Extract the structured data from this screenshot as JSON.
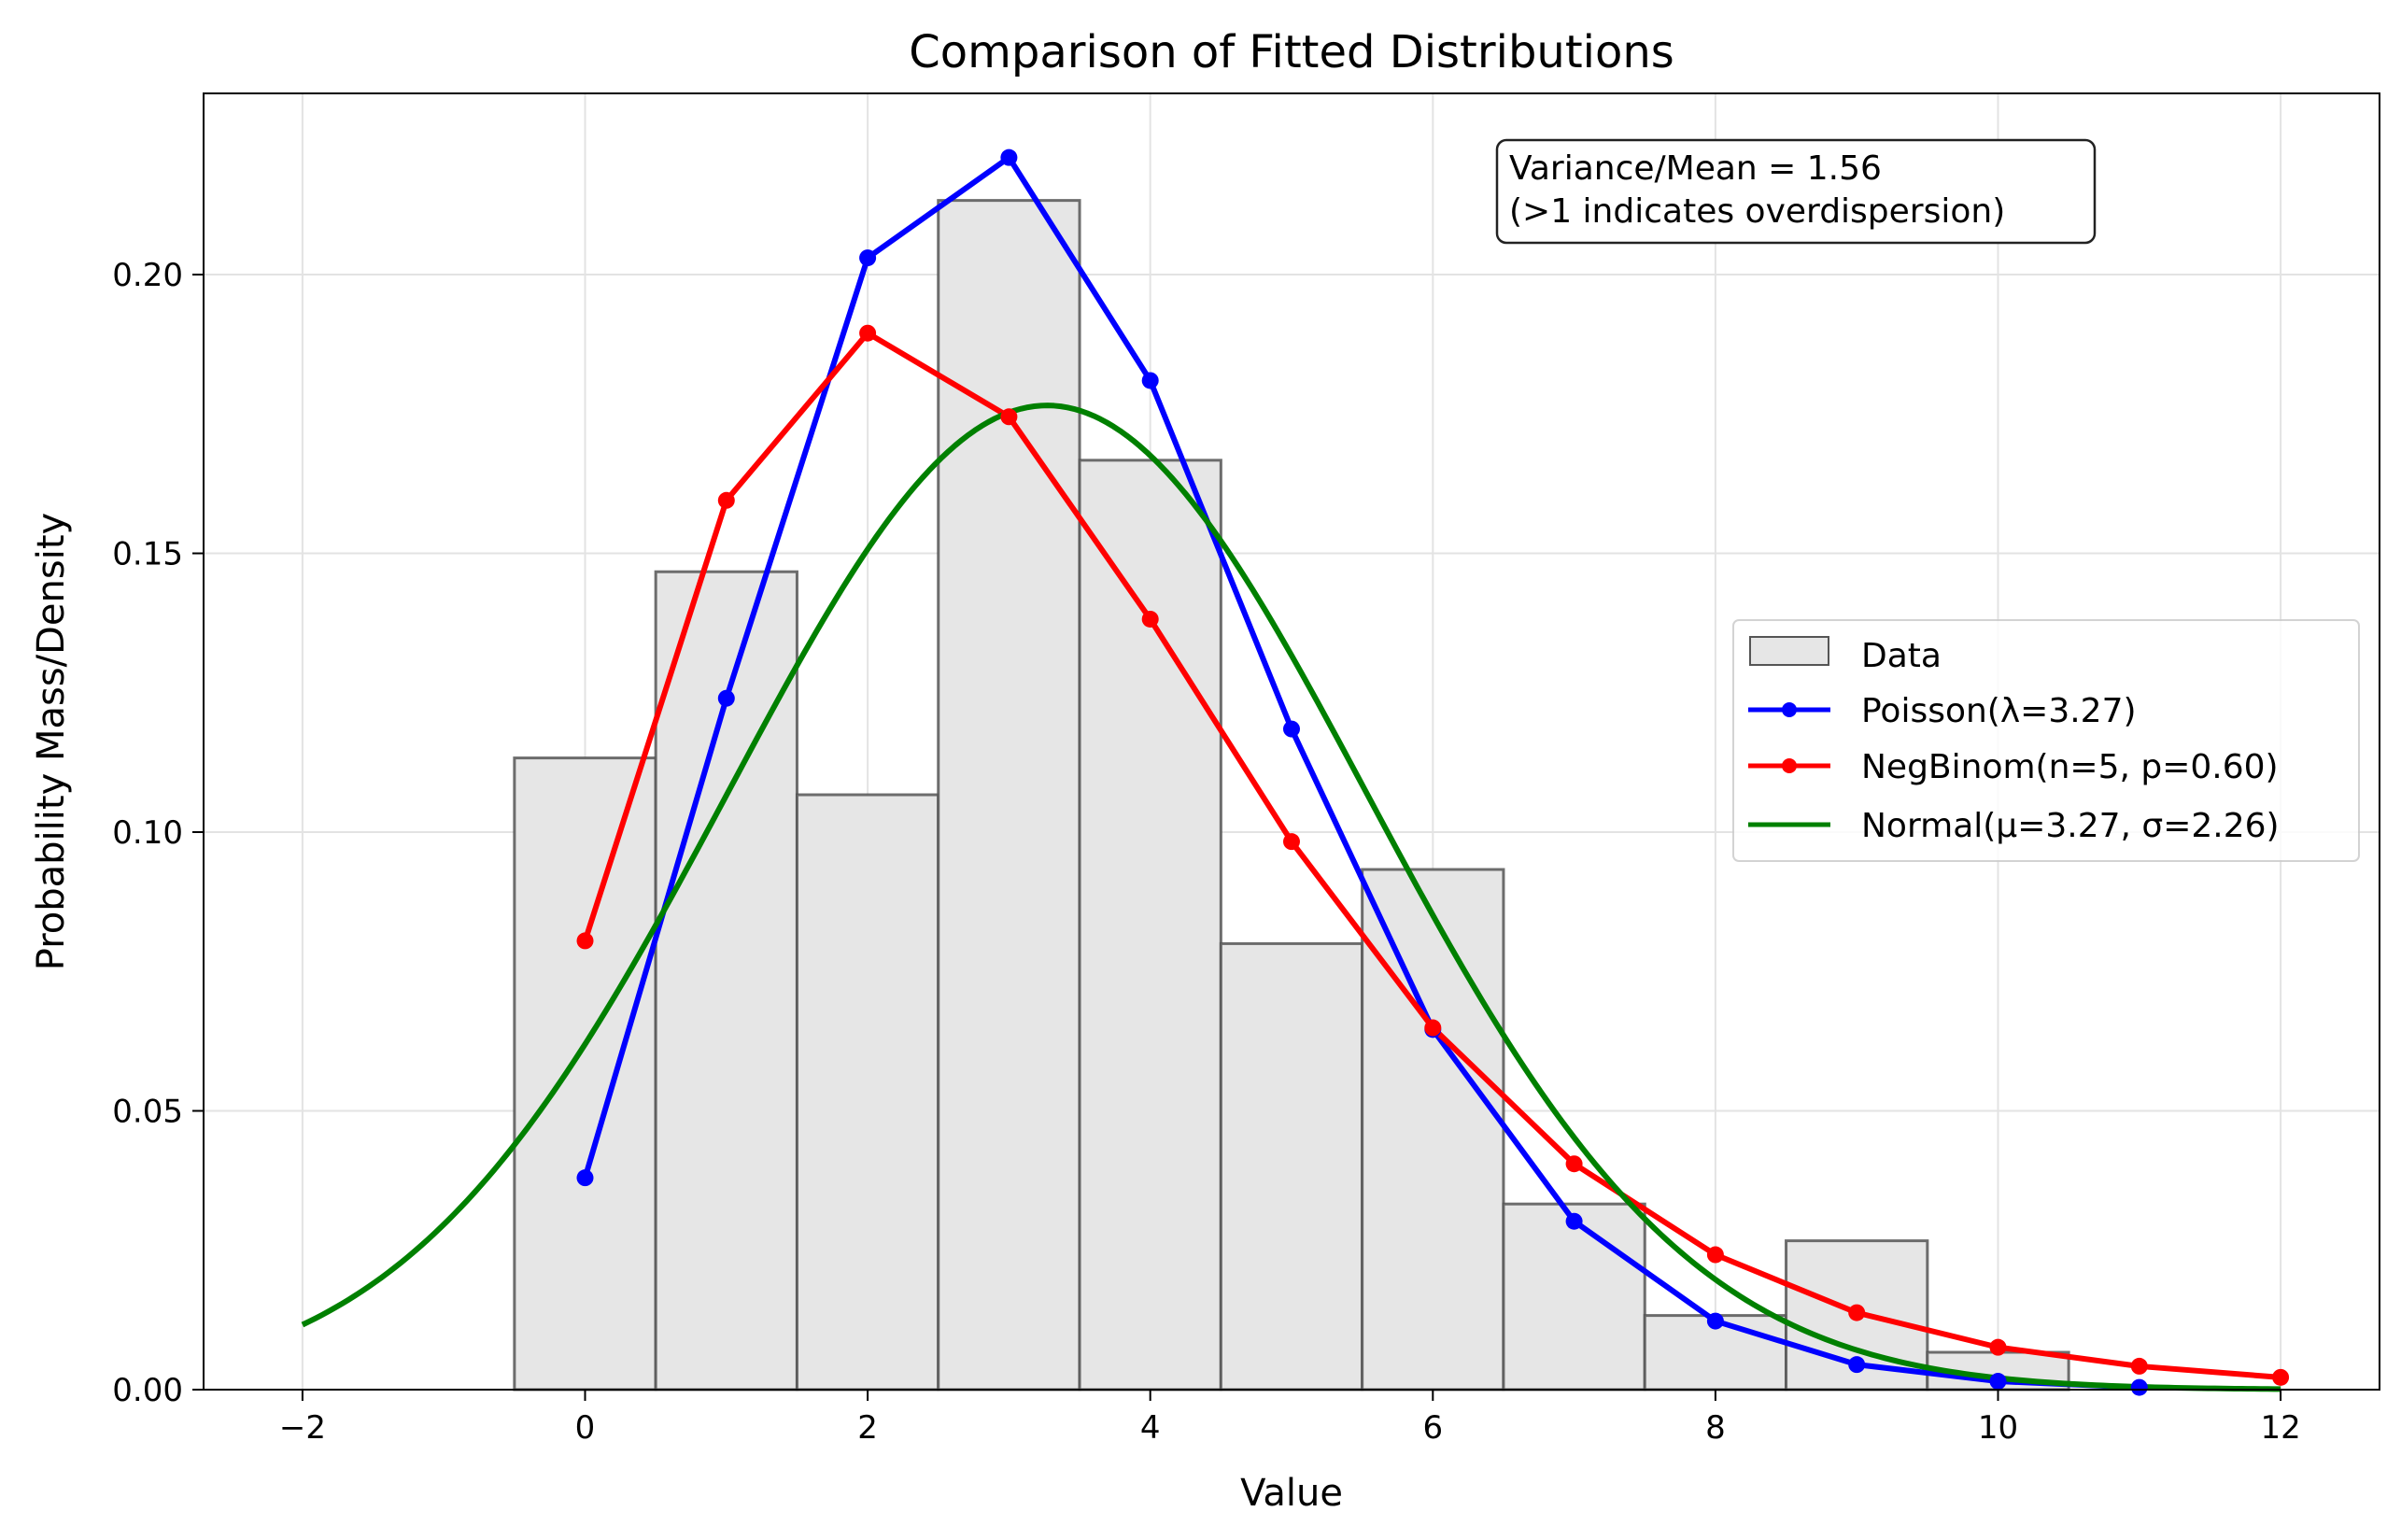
{
  "chart_data": {
    "type": "bar",
    "title": "Comparison of Fitted Distributions",
    "xlabel": "Value",
    "ylabel": "Probability Mass/Density",
    "xlim": [
      -2.7,
      12.7
    ],
    "ylim": [
      0,
      0.2325
    ],
    "xticks": [
      -2,
      0,
      2,
      4,
      6,
      8,
      10,
      12
    ],
    "xtick_labels": [
      "−2",
      "0",
      "2",
      "4",
      "6",
      "8",
      "10",
      "12"
    ],
    "yticks": [
      0,
      0.05,
      0.1,
      0.15,
      0.2
    ],
    "ytick_labels": [
      "0.00",
      "0.05",
      "0.10",
      "0.15",
      "0.20"
    ],
    "grid": true,
    "legend_position": "center-right",
    "annotation": {
      "line1": "Variance/Mean = 1.56",
      "line2": "(>1 indicates overdispersion)",
      "position": "top-right"
    },
    "histogram": {
      "name": "Data",
      "color": "#e6e6e6",
      "edge_color": "#555555",
      "bin_edges": [
        -0.5,
        0.5,
        1.5,
        2.5,
        3.5,
        4.5,
        5.5,
        6.5,
        7.5,
        8.5,
        9.5,
        10.5
      ],
      "values": [
        0.1133,
        0.1467,
        0.1067,
        0.2133,
        0.1667,
        0.08,
        0.0933,
        0.0333,
        0.0133,
        0.0267,
        0.0067
      ]
    },
    "series": [
      {
        "name": "Poisson(λ=3.27)",
        "color": "#0000ff",
        "kind": "line-markers",
        "x": [
          0,
          1,
          2,
          3,
          4,
          5,
          6,
          7,
          8,
          9,
          10,
          11
        ],
        "values": [
          0.038,
          0.124,
          0.203,
          0.221,
          0.181,
          0.1185,
          0.0646,
          0.0302,
          0.0123,
          0.0045,
          0.0015,
          0.0004
        ]
      },
      {
        "name": "NegBinom(n=5, p=0.60)",
        "color": "#ff0000",
        "kind": "line-markers",
        "x": [
          0,
          1,
          2,
          3,
          4,
          5,
          6,
          7,
          8,
          9,
          10,
          11,
          12
        ],
        "values": [
          0.0805,
          0.1595,
          0.1895,
          0.1745,
          0.1382,
          0.0983,
          0.0649,
          0.0405,
          0.0242,
          0.0138,
          0.0076,
          0.0042,
          0.0022
        ]
      },
      {
        "name": "Normal(μ=3.27, σ=2.26)",
        "color": "#008000",
        "kind": "curve",
        "mu": 3.27,
        "sigma": 2.26,
        "x_range": [
          -2,
          12
        ]
      }
    ]
  }
}
